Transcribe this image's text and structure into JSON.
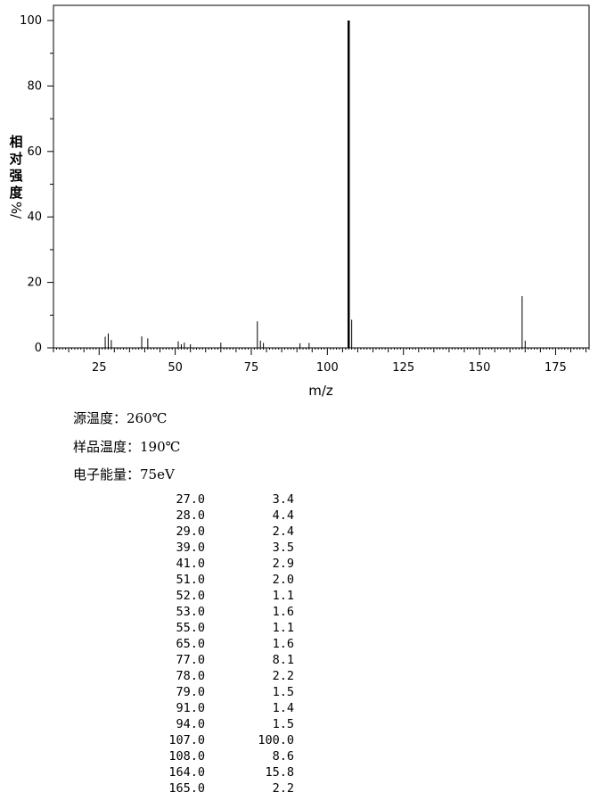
{
  "chart_data": {
    "type": "bar",
    "xlabel": "m/z",
    "ylabel_chars": [
      "相",
      "对",
      "强",
      "度"
    ],
    "ylabel_unit": "%/",
    "xlim": [
      10,
      186
    ],
    "ylim": [
      0,
      100
    ],
    "x_ticks": [
      25,
      50,
      75,
      100,
      125,
      150,
      175
    ],
    "y_ticks": [
      0,
      20,
      40,
      60,
      80,
      100
    ],
    "x": [
      27,
      28,
      29,
      39,
      41,
      51,
      52,
      53,
      55,
      65,
      77,
      78,
      79,
      91,
      94,
      107,
      108,
      164,
      165
    ],
    "values": [
      3.4,
      4.4,
      2.4,
      3.5,
      2.9,
      2.0,
      1.1,
      1.6,
      1.1,
      1.6,
      8.1,
      2.2,
      1.5,
      1.4,
      1.5,
      100.0,
      8.6,
      15.8,
      2.2
    ],
    "grid": false
  },
  "conditions": [
    {
      "label": "源温度：",
      "value": "260℃"
    },
    {
      "label": "样品温度：",
      "value": "190℃"
    },
    {
      "label": "电子能量：",
      "value": "75eV"
    }
  ],
  "peaks": [
    {
      "mz": "27.0",
      "abundance": "3.4"
    },
    {
      "mz": "28.0",
      "abundance": "4.4"
    },
    {
      "mz": "29.0",
      "abundance": "2.4"
    },
    {
      "mz": "39.0",
      "abundance": "3.5"
    },
    {
      "mz": "41.0",
      "abundance": "2.9"
    },
    {
      "mz": "51.0",
      "abundance": "2.0"
    },
    {
      "mz": "52.0",
      "abundance": "1.1"
    },
    {
      "mz": "53.0",
      "abundance": "1.6"
    },
    {
      "mz": "55.0",
      "abundance": "1.1"
    },
    {
      "mz": "65.0",
      "abundance": "1.6"
    },
    {
      "mz": "77.0",
      "abundance": "8.1"
    },
    {
      "mz": "78.0",
      "abundance": "2.2"
    },
    {
      "mz": "79.0",
      "abundance": "1.5"
    },
    {
      "mz": "91.0",
      "abundance": "1.4"
    },
    {
      "mz": "94.0",
      "abundance": "1.5"
    },
    {
      "mz": "107.0",
      "abundance": "100.0"
    },
    {
      "mz": "108.0",
      "abundance": "8.6"
    },
    {
      "mz": "164.0",
      "abundance": "15.8"
    },
    {
      "mz": "165.0",
      "abundance": "2.2"
    }
  ]
}
